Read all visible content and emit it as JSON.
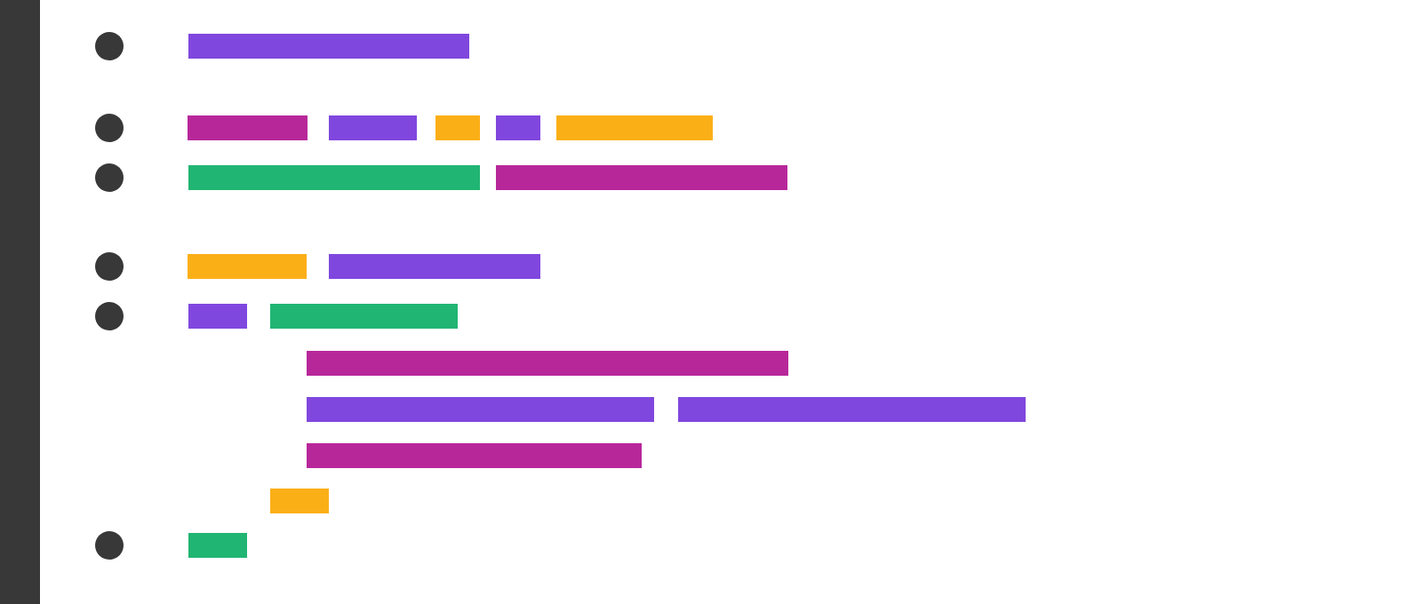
{
  "theme": {
    "gutter": "#383838",
    "bullet": "#383838",
    "background": "#ffffff"
  },
  "palette": {
    "purple": "#8047de",
    "magenta": "#b8279a",
    "orange": "#fbaf17",
    "green": "#21b573"
  },
  "lines": [
    {
      "bullet": true,
      "tokens": [
        "purple"
      ]
    },
    {
      "bullet": true,
      "tokens": [
        "magenta",
        "purple",
        "orange",
        "purple",
        "orange"
      ]
    },
    {
      "bullet": true,
      "tokens": [
        "green",
        "magenta"
      ]
    },
    {
      "bullet": true,
      "tokens": [
        "orange",
        "purple"
      ]
    },
    {
      "bullet": true,
      "tokens": [
        "purple",
        "green"
      ]
    },
    {
      "bullet": false,
      "tokens": [
        "magenta"
      ]
    },
    {
      "bullet": false,
      "tokens": [
        "purple",
        "purple"
      ]
    },
    {
      "bullet": false,
      "tokens": [
        "magenta"
      ]
    },
    {
      "bullet": false,
      "tokens": [
        "orange"
      ]
    },
    {
      "bullet": true,
      "tokens": [
        "green"
      ]
    }
  ]
}
